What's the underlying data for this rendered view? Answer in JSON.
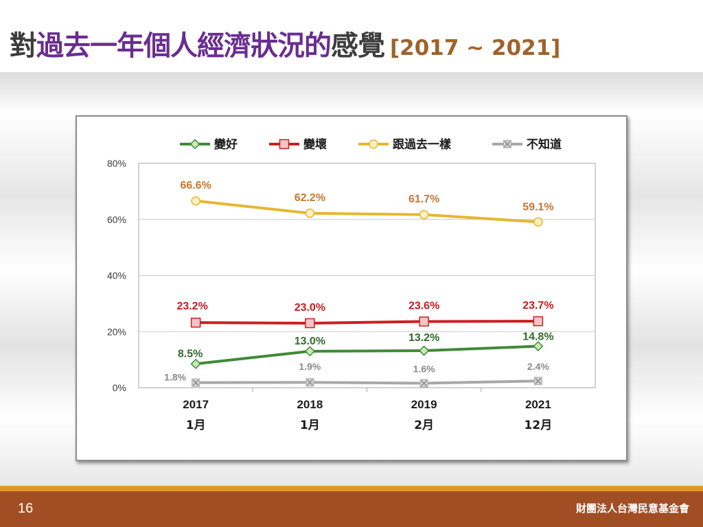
{
  "title": {
    "part1": "對",
    "part2": "過去一年個人經濟狀況的",
    "part3": "感覺",
    "period": "[2017 ~ 2021]"
  },
  "footer": {
    "page_number": "16",
    "organization": "財團法人台灣民意基金會"
  },
  "colors": {
    "title_dark": "#3d3d3d",
    "title_purple": "#6a2d91",
    "title_year": "#a0622a",
    "footer_bar": "#a24e24",
    "footer_strip": "#dd9a2b"
  },
  "chart_data": {
    "type": "line",
    "categories": [
      {
        "year": "2017",
        "month": "1月"
      },
      {
        "year": "2018",
        "month": "1月"
      },
      {
        "year": "2019",
        "month": "2月"
      },
      {
        "year": "2021",
        "month": "12月"
      }
    ],
    "ylim": [
      0,
      80
    ],
    "yticks": [
      "0%",
      "20%",
      "40%",
      "60%",
      "80%"
    ],
    "yticks_values": [
      0,
      20,
      40,
      60,
      80
    ],
    "grid": true,
    "legend_position": "top",
    "series": [
      {
        "name": "變好",
        "values": [
          8.5,
          13.0,
          13.2,
          14.8
        ],
        "labels": [
          "8.5%",
          "13.0%",
          "13.2%",
          "14.8%"
        ],
        "color": "#3f8a36",
        "fill": "#c9e9b5",
        "marker": "diamond",
        "label_color": "#2f6b2a"
      },
      {
        "name": "變壞",
        "values": [
          23.2,
          23.0,
          23.6,
          23.7
        ],
        "labels": [
          "23.2%",
          "23.0%",
          "23.6%",
          "23.7%"
        ],
        "color": "#cc1f1f",
        "fill": "#f5c4c8",
        "marker": "square",
        "label_color": "#c41e1e"
      },
      {
        "name": "跟過去一樣",
        "values": [
          66.6,
          62.2,
          61.7,
          59.1
        ],
        "labels": [
          "66.6%",
          "62.2%",
          "61.7%",
          "59.1%"
        ],
        "color": "#e5b830",
        "fill": "#fbf0c2",
        "marker": "circle",
        "label_color": "#c9762e"
      },
      {
        "name": "不知道",
        "values": [
          1.8,
          1.9,
          1.6,
          2.4
        ],
        "labels": [
          "1.8%",
          "1.9%",
          "1.6%",
          "2.4%"
        ],
        "color": "#a8a8a8",
        "fill": "#d6d6d6",
        "marker": "x",
        "label_color": "#8a8a8a"
      }
    ]
  }
}
